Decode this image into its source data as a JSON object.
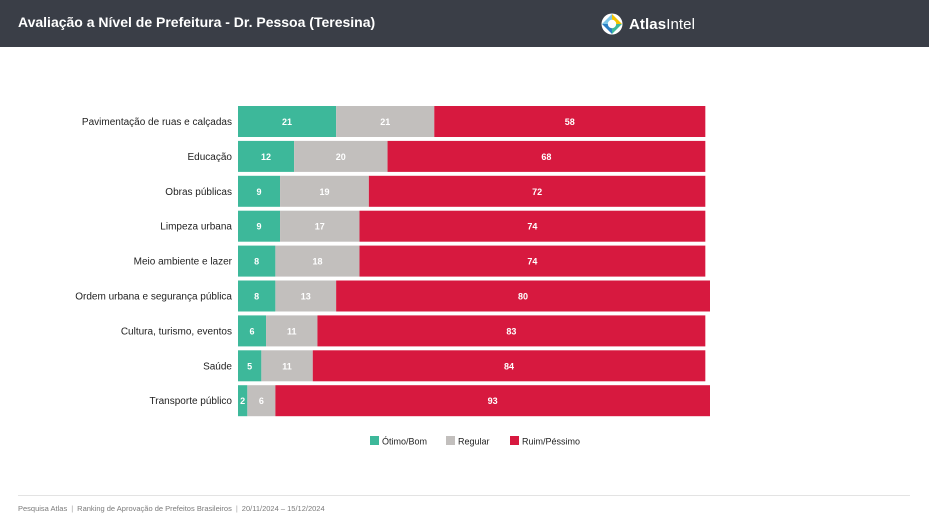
{
  "header": {
    "title": "Avaliação a Nível de Prefeitura - Dr. Pessoa (Teresina)",
    "logo_bold": "Atlas",
    "logo_light": "Intel"
  },
  "chart_data": {
    "type": "bar",
    "orientation": "horizontal",
    "stacked": true,
    "categories": [
      "Pavimentação de ruas e calçadas",
      "Educação",
      "Obras públicas",
      "Limpeza urbana",
      "Meio ambiente e lazer",
      "Ordem urbana e segurança pública",
      "Cultura, turismo, eventos",
      "Saúde",
      "Transporte público"
    ],
    "series": [
      {
        "name": "Ótimo/Bom",
        "color": "#3db89a",
        "values": [
          21,
          12,
          9,
          9,
          8,
          8,
          6,
          5,
          2
        ]
      },
      {
        "name": "Regular",
        "color": "#c2bfbd",
        "values": [
          21,
          20,
          19,
          17,
          18,
          13,
          11,
          11,
          6
        ]
      },
      {
        "name": "Ruim/Péssimo",
        "color": "#d7193f",
        "values": [
          58,
          68,
          72,
          74,
          74,
          80,
          83,
          84,
          93
        ]
      }
    ],
    "xlim": [
      0,
      101
    ],
    "legend_position": "bottom",
    "grid": false
  },
  "footer": {
    "source": "Pesquisa Atlas",
    "study": "Ranking de Aprovação de Prefeitos Brasileiros",
    "period": "20/11/2024 – 15/12/2024"
  }
}
